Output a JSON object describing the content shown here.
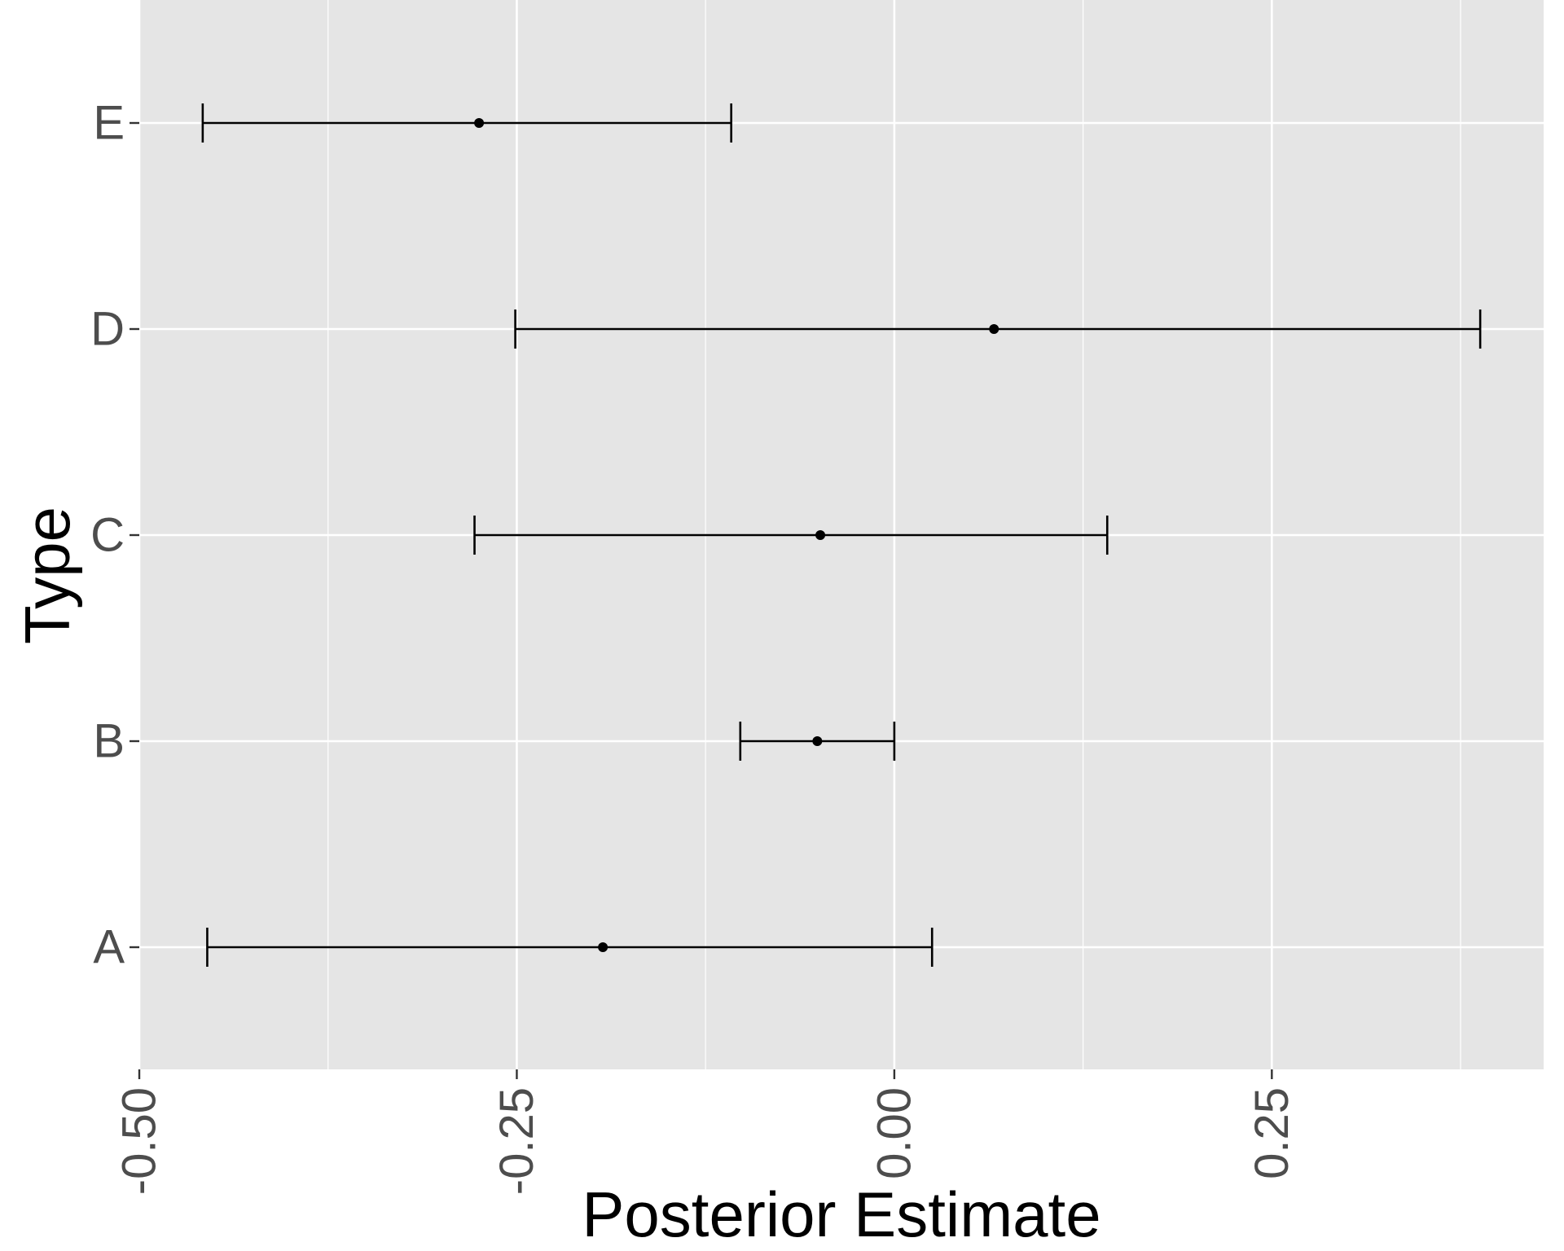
{
  "chart_data": {
    "type": "errorbar",
    "orientation": "horizontal",
    "xlabel": "Posterior Estimate",
    "ylabel": "Type",
    "xlim": [
      -0.5,
      0.43
    ],
    "x_ticks": [
      -0.5,
      -0.25,
      0.0,
      0.25
    ],
    "x_tick_labels": [
      "-0.50",
      "-0.25",
      "0.00",
      "0.25"
    ],
    "categories": [
      "A",
      "B",
      "C",
      "D",
      "E"
    ],
    "estimates": [
      -0.193,
      -0.051,
      -0.049,
      0.066,
      -0.275
    ],
    "lower": [
      -0.455,
      -0.102,
      -0.278,
      -0.251,
      -0.458
    ],
    "upper": [
      0.025,
      0.0,
      0.141,
      0.388,
      -0.108
    ],
    "grid": true,
    "legend": "none",
    "colors": {
      "panel": "#e5e5e5",
      "grid": "#ffffff",
      "marks": "#000000",
      "tick_text": "#4d4d4d"
    }
  }
}
